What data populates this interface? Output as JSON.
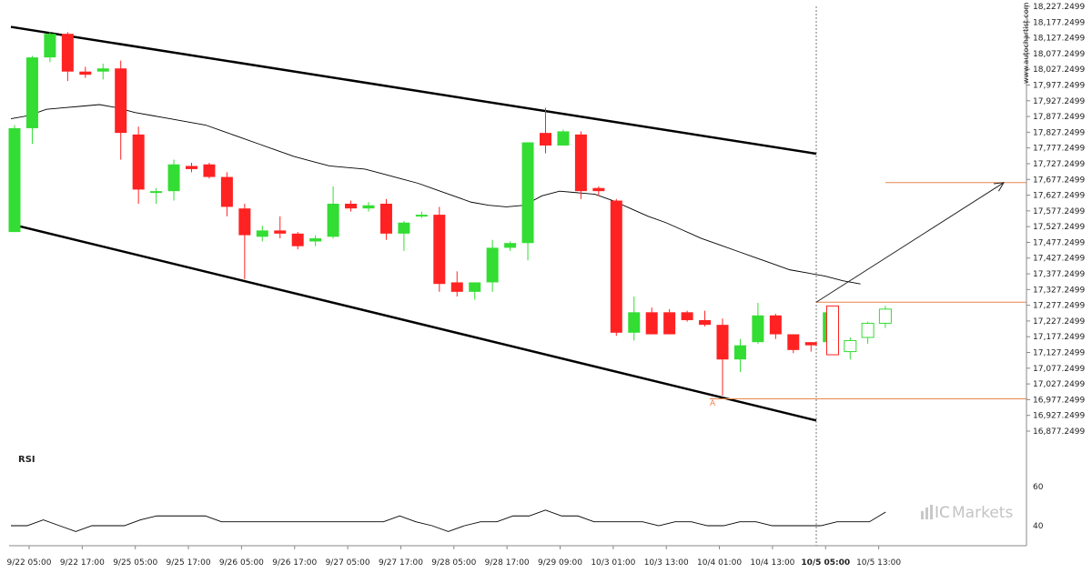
{
  "watermark": "www.autochartist.com",
  "brand": {
    "prefix": "IC",
    "suffix": "Markets"
  },
  "colors": {
    "bull": "#33dd33",
    "bear": "#ff2222",
    "projection": "#e8864a",
    "line": "#000000",
    "grid": "#dddddd"
  },
  "chart_data": [
    {
      "type": "candlestick",
      "title": "",
      "y_ticks": [
        "18,227.2499",
        "18,177.2499",
        "18,127.2499",
        "18,077.2499",
        "18,027.2499",
        "17,977.2499",
        "17,927.2499",
        "17,877.2499",
        "17,827.2499",
        "17,777.2499",
        "17,727.2499",
        "17,677.2499",
        "17,627.2499",
        "17,577.2499",
        "17,527.2499",
        "17,477.2499",
        "17,427.2499",
        "17,377.2499",
        "17,327.2499",
        "17,277.2499",
        "17,227.2499",
        "17,177.2499",
        "17,127.2499",
        "17,077.2499",
        "17,027.2499",
        "16,977.2499",
        "16,927.2499",
        "16,877.2499"
      ],
      "ylim": [
        16877.2499,
        18227.2499
      ],
      "x_ticks": [
        "9/22 05:00",
        "9/22 17:00",
        "9/25 05:00",
        "9/25 17:00",
        "9/26 05:00",
        "9/26 17:00",
        "9/27 05:00",
        "9/27 17:00",
        "9/28 05:00",
        "9/28 17:00",
        "9/29 09:00",
        "10/3 01:00",
        "10/3 13:00",
        "10/4 01:00",
        "10/4 13:00",
        "10/5 05:00",
        "10/5 13:00"
      ],
      "x_ticks_bold": [
        "10/5 05:00"
      ],
      "candles": [
        {
          "o": 17510,
          "h": 17850,
          "l": 17510,
          "c": 17840
        },
        {
          "o": 17840,
          "h": 18070,
          "l": 17790,
          "c": 18065
        },
        {
          "o": 18065,
          "h": 18145,
          "l": 18050,
          "c": 18140
        },
        {
          "o": 18140,
          "h": 18145,
          "l": 17990,
          "c": 18020
        },
        {
          "o": 18020,
          "h": 18035,
          "l": 18000,
          "c": 18010
        },
        {
          "o": 18020,
          "h": 18045,
          "l": 17995,
          "c": 18030
        },
        {
          "o": 18030,
          "h": 18055,
          "l": 17740,
          "c": 17825
        },
        {
          "o": 17820,
          "h": 17845,
          "l": 17600,
          "c": 17645
        },
        {
          "o": 17640,
          "h": 17650,
          "l": 17600,
          "c": 17640
        },
        {
          "o": 17640,
          "h": 17740,
          "l": 17610,
          "c": 17725
        },
        {
          "o": 17720,
          "h": 17730,
          "l": 17700,
          "c": 17710
        },
        {
          "o": 17725,
          "h": 17730,
          "l": 17680,
          "c": 17685
        },
        {
          "o": 17685,
          "h": 17700,
          "l": 17560,
          "c": 17590
        },
        {
          "o": 17585,
          "h": 17600,
          "l": 17360,
          "c": 17500
        },
        {
          "o": 17495,
          "h": 17530,
          "l": 17480,
          "c": 17515
        },
        {
          "o": 17515,
          "h": 17560,
          "l": 17490,
          "c": 17505
        },
        {
          "o": 17505,
          "h": 17510,
          "l": 17455,
          "c": 17465
        },
        {
          "o": 17480,
          "h": 17500,
          "l": 17465,
          "c": 17490
        },
        {
          "o": 17495,
          "h": 17655,
          "l": 17490,
          "c": 17600
        },
        {
          "o": 17600,
          "h": 17610,
          "l": 17575,
          "c": 17585
        },
        {
          "o": 17585,
          "h": 17605,
          "l": 17575,
          "c": 17595
        },
        {
          "o": 17600,
          "h": 17615,
          "l": 17485,
          "c": 17505
        },
        {
          "o": 17505,
          "h": 17545,
          "l": 17450,
          "c": 17540
        },
        {
          "o": 17565,
          "h": 17575,
          "l": 17555,
          "c": 17565
        },
        {
          "o": 17565,
          "h": 17590,
          "l": 17320,
          "c": 17345
        },
        {
          "o": 17350,
          "h": 17385,
          "l": 17305,
          "c": 17320
        },
        {
          "o": 17320,
          "h": 17350,
          "l": 17295,
          "c": 17350
        },
        {
          "o": 17350,
          "h": 17485,
          "l": 17320,
          "c": 17460
        },
        {
          "o": 17460,
          "h": 17480,
          "l": 17450,
          "c": 17475
        },
        {
          "o": 17475,
          "h": 17795,
          "l": 17420,
          "c": 17795
        },
        {
          "o": 17825,
          "h": 17905,
          "l": 17760,
          "c": 17785
        },
        {
          "o": 17785,
          "h": 17835,
          "l": 17785,
          "c": 17830
        },
        {
          "o": 17820,
          "h": 17830,
          "l": 17615,
          "c": 17640
        },
        {
          "o": 17650,
          "h": 17655,
          "l": 17625,
          "c": 17640
        },
        {
          "o": 17610,
          "h": 17615,
          "l": 17180,
          "c": 17190
        },
        {
          "o": 17190,
          "h": 17305,
          "l": 17165,
          "c": 17255
        },
        {
          "o": 17255,
          "h": 17270,
          "l": 17185,
          "c": 17185
        },
        {
          "o": 17255,
          "h": 17265,
          "l": 17185,
          "c": 17185
        },
        {
          "o": 17255,
          "h": 17260,
          "l": 17225,
          "c": 17230
        },
        {
          "o": 17230,
          "h": 17260,
          "l": 17210,
          "c": 17215
        },
        {
          "o": 17215,
          "h": 17235,
          "l": 16990,
          "c": 17105
        },
        {
          "o": 17105,
          "h": 17170,
          "l": 17065,
          "c": 17150
        },
        {
          "o": 17160,
          "h": 17285,
          "l": 17155,
          "c": 17245
        },
        {
          "o": 17245,
          "h": 17250,
          "l": 17170,
          "c": 17185
        },
        {
          "o": 17185,
          "h": 17185,
          "l": 17125,
          "c": 17135
        },
        {
          "o": 17160,
          "h": 17160,
          "l": 17130,
          "c": 17150
        },
        {
          "o": 17160,
          "h": 17275,
          "l": 17160,
          "c": 17255
        }
      ],
      "pending_candles": [
        {
          "o": 17275,
          "h": 17275,
          "l": 17120,
          "c": 17120
        },
        {
          "o": 17130,
          "h": 17175,
          "l": 17105,
          "c": 17165
        },
        {
          "o": 17175,
          "h": 17225,
          "l": 17155,
          "c": 17220
        },
        {
          "o": 17220,
          "h": 17275,
          "l": 17205,
          "c": 17265
        }
      ],
      "moving_average": [
        17870,
        17880,
        17900,
        17905,
        17910,
        17915,
        17905,
        17890,
        17880,
        17870,
        17860,
        17850,
        17830,
        17810,
        17790,
        17770,
        17750,
        17735,
        17720,
        17715,
        17710,
        17695,
        17680,
        17665,
        17645,
        17625,
        17605,
        17595,
        17590,
        17595,
        17625,
        17640,
        17635,
        17630,
        17610,
        17585,
        17560,
        17540,
        17515,
        17490,
        17470,
        17450,
        17430,
        17410,
        17390,
        17380,
        17370,
        17355,
        17345
      ],
      "channel": {
        "upper": {
          "start": 18162,
          "end": 17759
        },
        "lower": {
          "start": 17535,
          "end": 16911
        }
      },
      "levels": {
        "resistance": 17287,
        "support": 16980,
        "target": 17667
      },
      "pattern_point_label": "A"
    },
    {
      "type": "line",
      "title": "RSI",
      "y_ticks": [
        "60",
        "40"
      ],
      "ylim": [
        30,
        70
      ],
      "values": [
        40,
        40,
        43,
        40,
        37,
        40,
        40,
        40,
        43,
        45,
        45,
        45,
        45,
        42,
        42,
        42,
        42,
        42,
        42,
        42,
        42,
        42,
        42,
        42,
        45,
        42,
        40,
        37,
        40,
        42,
        42,
        45,
        45,
        48,
        45,
        45,
        42,
        42,
        42,
        42,
        40,
        42,
        42,
        40,
        40,
        42,
        42,
        40,
        40,
        40,
        40,
        42,
        42,
        42,
        47
      ]
    }
  ]
}
